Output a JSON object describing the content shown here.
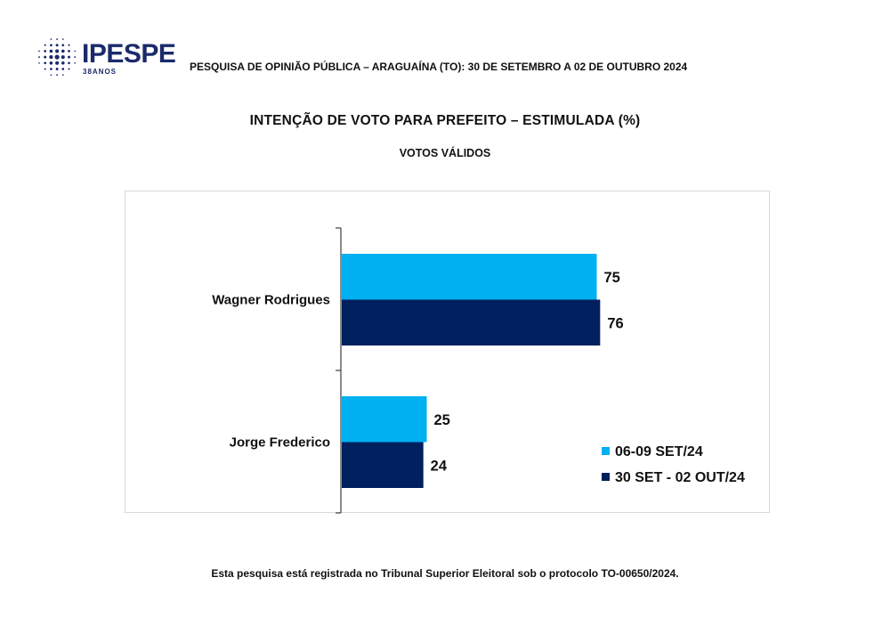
{
  "logo": {
    "brand": "IPESPE",
    "tagline": "38ANOS",
    "color": "#1b2a6b"
  },
  "header": {
    "survey_line": "PESQUISA DE OPINIÃO PÚBLICA – ARAGUAÍNA (TO): 30 DE SETEMBRO A 02 DE OUTUBRO 2024"
  },
  "chart_data": {
    "type": "bar",
    "orientation": "horizontal",
    "title": "INTENÇÃO DE VOTO PARA PREFEITO – ESTIMULADA (%)",
    "subtitle": "VOTOS VÁLIDOS",
    "categories": [
      "Wagner Rodrigues",
      "Jorge Frederico"
    ],
    "series": [
      {
        "name": "06-09 SET/24",
        "values": [
          75,
          25
        ],
        "color": "#00b0f0"
      },
      {
        "name": "30 SET - 02 OUT/24",
        "values": [
          76,
          24
        ],
        "color": "#002060"
      }
    ],
    "xlim": [
      0,
      100
    ],
    "grid": false,
    "data_labels": true,
    "legend_position": "bottom-right"
  },
  "footer": {
    "note": "Esta pesquisa está registrada no Tribunal Superior Eleitoral sob o protocolo TO-00650/2024."
  }
}
